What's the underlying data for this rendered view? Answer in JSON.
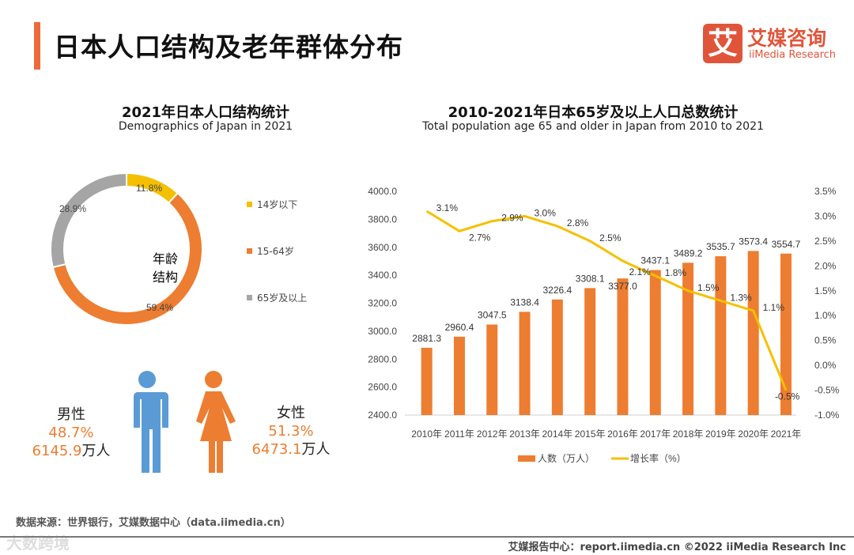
{
  "header": {
    "title": "日本人口结构及老年群体分布",
    "logo_mark": "艾",
    "logo_cn": "艾媒咨询",
    "logo_en": "iiMedia Research"
  },
  "colors": {
    "accent": "#ED6A3A",
    "orange": "#ED7D31",
    "yellow": "#F5C000",
    "gray": "#A5A5A5",
    "blue": "#5B9BD5"
  },
  "chart_data": [
    {
      "type": "pie",
      "title": "2021年日本人口结构统计",
      "subtitle": "Demographics of Japan in 2021",
      "center_label": [
        "年龄",
        "结构"
      ],
      "categories": [
        "14岁以下",
        "15-64岁",
        "65岁及以上"
      ],
      "values": [
        11.8,
        59.4,
        28.9
      ],
      "labels": [
        "11.8%",
        "59.4%",
        "28.9%"
      ],
      "legend": "right"
    },
    {
      "type": "bar",
      "title": "2010-2021年日本65岁及以上人口总数统计",
      "subtitle": "Total population age 65 and older in Japan from 2010 to 2021",
      "categories": [
        "2010年",
        "2011年",
        "2012年",
        "2013年",
        "2014年",
        "2015年",
        "2016年",
        "2017年",
        "2018年",
        "2019年",
        "2020年",
        "2021年"
      ],
      "series": [
        {
          "name": "人数（万人）",
          "type": "bar",
          "values": [
            2881.3,
            2960.4,
            3047.5,
            3138.4,
            3226.4,
            3308.1,
            3377.0,
            3437.1,
            3489.2,
            3535.7,
            3573.4,
            3554.7
          ],
          "labels": [
            "2881.3",
            "2960.4",
            "3047.5",
            "3138.4",
            "3226.4",
            "3308.1",
            "3377.0",
            "3437.1",
            "3489.2",
            "3535.7",
            "3573.4",
            "3554.7"
          ]
        },
        {
          "name": "增长率（%）",
          "type": "line",
          "axis": "right",
          "values": [
            3.1,
            2.7,
            2.9,
            3.0,
            2.8,
            2.5,
            2.1,
            1.8,
            1.5,
            1.3,
            1.1,
            -0.5
          ],
          "labels": [
            "3.1%",
            "2.7%",
            "2.9%",
            "3.0%",
            "2.8%",
            "2.5%",
            "2.1%",
            "1.8%",
            "1.5%",
            "1.3%",
            "1.1%",
            "-0.5%"
          ]
        }
      ],
      "ylim": [
        2400,
        4000
      ],
      "yticks": [
        "4000.0",
        "3800.0",
        "3600.0",
        "3400.0",
        "3200.0",
        "3000.0",
        "2800.0",
        "2600.0",
        "2400.0"
      ],
      "y2lim": [
        -1.0,
        3.5
      ],
      "y2ticks": [
        "3.5%",
        "3.0%",
        "2.5%",
        "2.0%",
        "1.5%",
        "1.0%",
        "0.5%",
        "0.0%",
        "-0.5%",
        "-1.0%"
      ],
      "legend": "bottom"
    }
  ],
  "gender": {
    "male_label": "男性",
    "male_pct": "48.7%",
    "male_num": "6145.9",
    "female_label": "女性",
    "female_pct": "51.3%",
    "female_num": "6473.1",
    "unit": "万人"
  },
  "footer": {
    "source": "数据来源：世界银行，艾媒数据中心（data.iimedia.cn）",
    "credit": "艾媒报告中心：report.iimedia.cn   ©2022  iiMedia Research  Inc",
    "watermark": "大数跨境"
  }
}
